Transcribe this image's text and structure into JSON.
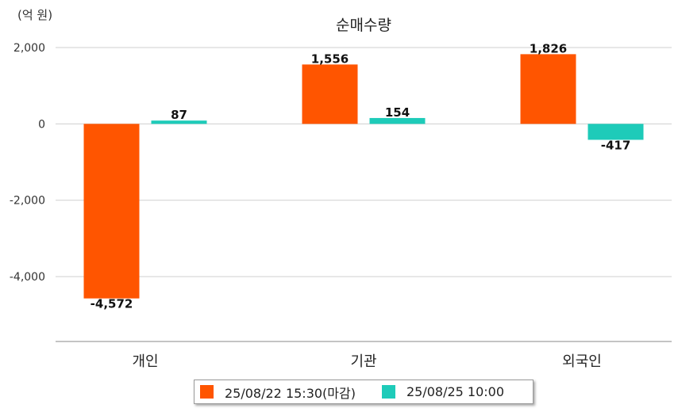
{
  "chart_data": {
    "type": "bar",
    "title": "순매수량",
    "unit_label": "(억 원)",
    "categories": [
      "개인",
      "기관",
      "외국인"
    ],
    "series": [
      {
        "name": "25/08/22 15:30(마감)",
        "color": "#ff5500",
        "values": [
          -4572,
          1556,
          1826
        ]
      },
      {
        "name": "25/08/25 10:00",
        "color": "#1ecbb9",
        "values": [
          87,
          154,
          -417
        ]
      }
    ],
    "value_labels": [
      [
        "-4,572",
        "1,556",
        "1,826"
      ],
      [
        "87",
        "154",
        "-417"
      ]
    ],
    "yticks": [
      2000,
      0,
      -2000,
      -4000
    ],
    "ytick_labels": [
      "2,000",
      "0",
      "-2,000",
      "-4,000"
    ],
    "ylim": [
      -5700,
      2000
    ],
    "grid": true,
    "legend_position": "bottom-center"
  }
}
